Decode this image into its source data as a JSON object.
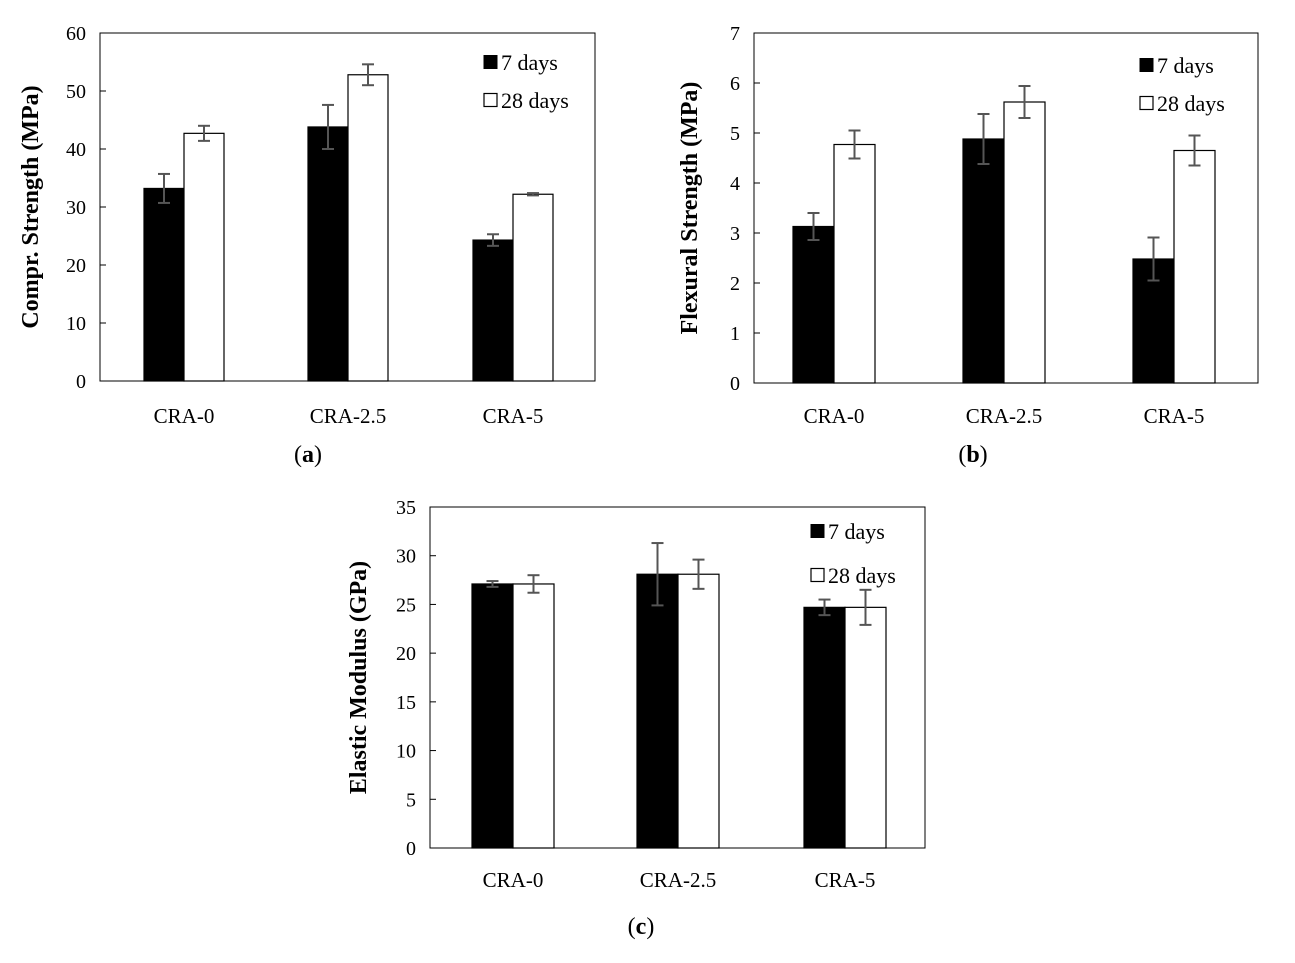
{
  "chart_data": [
    {
      "type": "bar",
      "panel_label": "a",
      "title": "",
      "xlabel": "",
      "ylabel": "Compr. Strength (MPa)",
      "ylim": [
        0,
        60
      ],
      "yticks": [
        0,
        10,
        20,
        30,
        40,
        50,
        60
      ],
      "categories": [
        "CRA-0",
        "CRA-2.5",
        "CRA-5"
      ],
      "series": [
        {
          "name": "7 days",
          "fill": "#000000",
          "values": [
            33.2,
            43.8,
            24.3
          ],
          "errors": [
            2.5,
            3.8,
            1.0
          ]
        },
        {
          "name": "28 days",
          "fill": "#ffffff",
          "values": [
            42.7,
            52.8,
            32.2
          ],
          "errors": [
            1.3,
            1.8,
            0.2
          ]
        }
      ],
      "legend_position": "top-right",
      "grid": false
    },
    {
      "type": "bar",
      "panel_label": "b",
      "title": "",
      "xlabel": "",
      "ylabel": "Flexural Strength (MPa)",
      "ylim": [
        0,
        7
      ],
      "yticks": [
        0,
        1,
        2,
        3,
        4,
        5,
        6,
        7
      ],
      "categories": [
        "CRA-0",
        "CRA-2.5",
        "CRA-5"
      ],
      "series": [
        {
          "name": "7 days",
          "fill": "#000000",
          "values": [
            3.13,
            4.88,
            2.48
          ],
          "errors": [
            0.27,
            0.5,
            0.43
          ]
        },
        {
          "name": "28 days",
          "fill": "#ffffff",
          "values": [
            4.77,
            5.62,
            4.65
          ],
          "errors": [
            0.28,
            0.32,
            0.3
          ]
        }
      ],
      "legend_position": "top-right",
      "grid": false
    },
    {
      "type": "bar",
      "panel_label": "c",
      "title": "",
      "xlabel": "",
      "ylabel": "Elastic Modulus (GPa)",
      "ylim": [
        0,
        35
      ],
      "yticks": [
        0,
        5,
        10,
        15,
        20,
        25,
        30,
        35
      ],
      "categories": [
        "CRA-0",
        "CRA-2.5",
        "CRA-5"
      ],
      "series": [
        {
          "name": "7 days",
          "fill": "#000000",
          "values": [
            27.1,
            28.1,
            24.7
          ],
          "errors": [
            0.3,
            3.2,
            0.8
          ]
        },
        {
          "name": "28 days",
          "fill": "#ffffff",
          "values": [
            27.1,
            28.1,
            24.7
          ],
          "errors": [
            0.9,
            1.5,
            1.8
          ]
        }
      ],
      "legend_position": "top-right",
      "grid": false
    }
  ],
  "colors": {
    "bar_7_days": "#000000",
    "bar_28_days": "#ffffff",
    "bar_outline": "#000000",
    "error_bar": "#555555",
    "plot_border": "#000000"
  }
}
